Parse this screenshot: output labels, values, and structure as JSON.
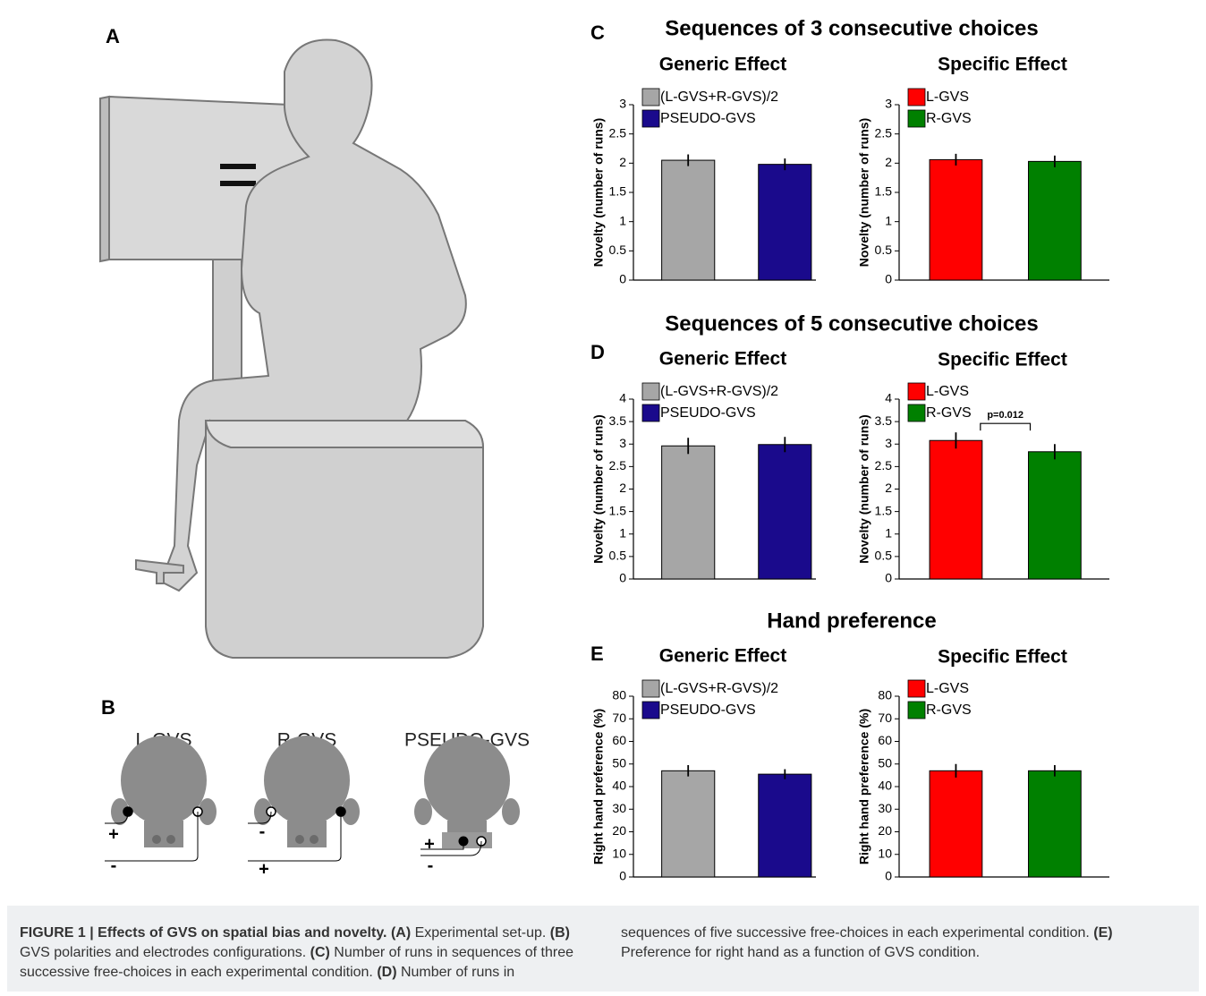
{
  "panel_a": {
    "label": "A"
  },
  "panel_b": {
    "label": "B",
    "conditions": [
      {
        "name": "L-GVS",
        "signs": [
          "+",
          "-"
        ]
      },
      {
        "name": "R-GVS",
        "signs": [
          "-",
          "+"
        ]
      },
      {
        "name": "PSEUDO-GVS",
        "signs": [
          "+",
          "-"
        ]
      }
    ]
  },
  "sections": [
    {
      "label": "C",
      "title": "Sequences of 3 consecutive choices"
    },
    {
      "label": "D",
      "title": "Sequences of 5 consecutive choices"
    },
    {
      "label": "E",
      "title": "Hand preference"
    }
  ],
  "chart_data": [
    {
      "type": "bar",
      "title": "Generic Effect",
      "y_label": "Novelty (number of runs)",
      "ylim": [
        0,
        3
      ],
      "yticks": [
        0,
        0.5,
        1,
        1.5,
        2,
        2.5,
        3
      ],
      "grid": false,
      "series": [
        {
          "name": "(L-GVS+R-GVS)/2",
          "color": "#a6a6a6",
          "values": [
            2.05
          ],
          "errors": [
            0.1
          ]
        },
        {
          "name": "PSEUDO-GVS",
          "color": "#1a0a8c",
          "values": [
            1.98
          ],
          "errors": [
            0.1
          ]
        }
      ]
    },
    {
      "type": "bar",
      "title": "Specific Effect",
      "y_label": "Novelty (number of runs)",
      "ylim": [
        0,
        3
      ],
      "yticks": [
        0,
        0.5,
        1,
        1.5,
        2,
        2.5,
        3
      ],
      "grid": false,
      "series": [
        {
          "name": "L-GVS",
          "color": "#ff0000",
          "values": [
            2.06
          ],
          "errors": [
            0.1
          ]
        },
        {
          "name": "R-GVS",
          "color": "#008000",
          "values": [
            2.03
          ],
          "errors": [
            0.1
          ]
        }
      ]
    },
    {
      "type": "bar",
      "title": "Generic Effect",
      "y_label": "Novelty (number of runs)",
      "ylim": [
        0,
        4
      ],
      "yticks": [
        0,
        0.5,
        1,
        1.5,
        2,
        2.5,
        3,
        3.5,
        4
      ],
      "grid": false,
      "series": [
        {
          "name": "(L-GVS+R-GVS)/2",
          "color": "#a6a6a6",
          "values": [
            2.96
          ],
          "errors": [
            0.18
          ]
        },
        {
          "name": "PSEUDO-GVS",
          "color": "#1a0a8c",
          "values": [
            2.99
          ],
          "errors": [
            0.17
          ]
        }
      ]
    },
    {
      "type": "bar",
      "title": "Specific Effect",
      "y_label": "Novelty (number of runs)",
      "ylim": [
        0,
        4
      ],
      "yticks": [
        0,
        0.5,
        1,
        1.5,
        2,
        2.5,
        3,
        3.5,
        4
      ],
      "grid": false,
      "annotation": "p=0.012",
      "series": [
        {
          "name": "L-GVS",
          "color": "#ff0000",
          "values": [
            3.08
          ],
          "errors": [
            0.18
          ]
        },
        {
          "name": "R-GVS",
          "color": "#008000",
          "values": [
            2.83
          ],
          "errors": [
            0.17
          ]
        }
      ]
    },
    {
      "type": "bar",
      "title": "Generic Effect",
      "y_label": "Right hand preference (%)",
      "ylim": [
        0,
        80
      ],
      "yticks": [
        0,
        10,
        20,
        30,
        40,
        50,
        60,
        70,
        80
      ],
      "grid": false,
      "series": [
        {
          "name": "(L-GVS+R-GVS)/2",
          "color": "#a6a6a6",
          "values": [
            47
          ],
          "errors": [
            2.5
          ]
        },
        {
          "name": "PSEUDO-GVS",
          "color": "#1a0a8c",
          "values": [
            45.5
          ],
          "errors": [
            2.2
          ]
        }
      ]
    },
    {
      "type": "bar",
      "title": "Specific Effect",
      "y_label": "Right hand preference (%)",
      "ylim": [
        0,
        80
      ],
      "yticks": [
        0,
        10,
        20,
        30,
        40,
        50,
        60,
        70,
        80
      ],
      "grid": false,
      "series": [
        {
          "name": "L-GVS",
          "color": "#ff0000",
          "values": [
            47
          ],
          "errors": [
            3
          ]
        },
        {
          "name": "R-GVS",
          "color": "#008000",
          "values": [
            47
          ],
          "errors": [
            2.5
          ]
        }
      ]
    }
  ],
  "caption": [
    {
      "text": "FIGURE 1 | Effects of GVS on spatial bias and novelty.",
      "bold": true
    },
    {
      "text": " ",
      "bold": false
    },
    {
      "text": "(A)",
      "bold": true
    },
    {
      "text": " Experimental set-up. ",
      "bold": false
    },
    {
      "text": "(B)",
      "bold": true
    },
    {
      "text": " GVS polarities and electrodes configurations. ",
      "bold": false
    },
    {
      "text": "(C)",
      "bold": true
    },
    {
      "text": " Number of runs in sequences of three successive free-choices in each experimental condition. ",
      "bold": false
    },
    {
      "text": "(D)",
      "bold": true
    },
    {
      "text": " Number of runs in sequences of five successive free-choices in each experimental condition. ",
      "bold": false
    },
    {
      "text": "(E)",
      "bold": true
    },
    {
      "text": " Preference for right hand as a function of GVS condition.",
      "bold": false
    }
  ]
}
